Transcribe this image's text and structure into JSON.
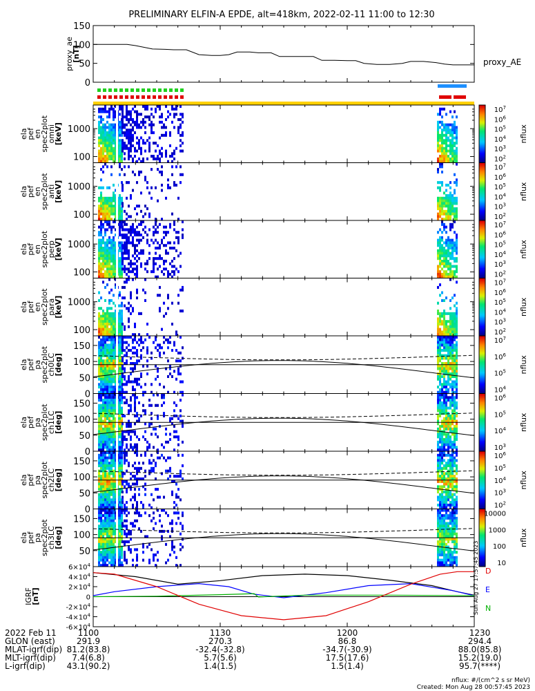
{
  "title": "PRELIMINARY ELFIN-A EPDE, alt=418km, 2022-02-11 11:00 to 12:30",
  "footer": {
    "units": "nflux: #/(cm^2 s sr MeV)",
    "created": "Created: Mon Aug 28 00:57:45 2023",
    "stamp": "Sun Aug 27 17:57:45 2023"
  },
  "orbit_table": {
    "rows": [
      {
        "label": "2022 Feb 11",
        "values": [
          "1100",
          "1130",
          "1200",
          "1230"
        ]
      },
      {
        "label": "GLON (east)",
        "values": [
          "291.9",
          "270.3",
          "86.8",
          "294.4"
        ]
      },
      {
        "label": "MLAT-igrf(dip)",
        "values": [
          "81.2(83.8)",
          "-32.4(-32.8)",
          "-34.7(-30.9)",
          "88.0(85.8)"
        ]
      },
      {
        "label": "MLT-igrf(dip)",
        "values": [
          "7.4(6.8)",
          "5.7(5.6)",
          "17.5(17.6)",
          "15.2(19.0)"
        ]
      },
      {
        "label": "L-igrf(dip)",
        "values": [
          "43.1(90.2)",
          "1.4(1.5)",
          "1.5(1.4)",
          "95.7(****)"
        ]
      }
    ]
  },
  "chart_data": [
    {
      "type": "line",
      "panel": "proxy_ae",
      "ylabel": [
        "proxy_ae",
        "[nT]"
      ],
      "legend": "proxy_AE",
      "ylim": [
        0,
        150
      ],
      "yticks": [
        "0",
        "50",
        "100",
        "150"
      ],
      "x_minutes": [
        0,
        4,
        8,
        10,
        14,
        17,
        19,
        22,
        25,
        28,
        30,
        32,
        34,
        37,
        39,
        42,
        44,
        47,
        49,
        52,
        54,
        57,
        60,
        62,
        64,
        67,
        70,
        73,
        75,
        78,
        81,
        83,
        85,
        86,
        88,
        90
      ],
      "values": [
        100,
        100,
        100,
        97,
        88,
        87,
        86,
        86,
        73,
        71,
        71,
        73,
        80,
        80,
        78,
        78,
        68,
        68,
        68,
        68,
        58,
        58,
        57,
        57,
        50,
        47,
        47,
        50,
        55,
        55,
        52,
        48,
        46,
        46,
        46,
        46
      ]
    },
    {
      "type": "heatmap",
      "panel": "spectrogram",
      "ylabel": [
        "ela",
        "pef",
        "en",
        "spec2plot",
        "omni",
        "[keV]"
      ],
      "y_scale": "log",
      "ylim": [
        60,
        7000
      ],
      "yticks": [
        "100",
        "1000"
      ],
      "colorbar": {
        "label": "nflux",
        "ticks": [
          "10^2",
          "10^3",
          "10^4",
          "10^5",
          "10^6",
          "10^7"
        ]
      }
    },
    {
      "type": "heatmap",
      "panel": "spectrogram",
      "ylabel": [
        "ela",
        "pef",
        "en",
        "spec2plot",
        "anti",
        "[keV]"
      ],
      "y_scale": "log",
      "ylim": [
        60,
        7000
      ],
      "yticks": [
        "100",
        "1000"
      ],
      "colorbar": {
        "label": "nflux",
        "ticks": [
          "10^2",
          "10^3",
          "10^4",
          "10^5",
          "10^6",
          "10^7"
        ]
      }
    },
    {
      "type": "heatmap",
      "panel": "spectrogram",
      "ylabel": [
        "ela",
        "pef",
        "en",
        "spec2plot",
        "perp",
        "[keV]"
      ],
      "y_scale": "log",
      "ylim": [
        60,
        7000
      ],
      "yticks": [
        "100",
        "1000"
      ],
      "colorbar": {
        "label": "nflux",
        "ticks": [
          "10^2",
          "10^3",
          "10^4",
          "10^5",
          "10^6",
          "10^7"
        ]
      }
    },
    {
      "type": "heatmap",
      "panel": "spectrogram",
      "ylabel": [
        "ela",
        "pef",
        "en",
        "spec2plot",
        "para",
        "[keV]"
      ],
      "y_scale": "log",
      "ylim": [
        60,
        7000
      ],
      "yticks": [
        "100",
        "1000"
      ],
      "colorbar": {
        "label": "nflux",
        "ticks": [
          "10^2",
          "10^3",
          "10^4",
          "10^5",
          "10^6",
          "10^7"
        ]
      }
    },
    {
      "type": "heatmap",
      "panel": "pitch_angle",
      "ylabel": [
        "ela",
        "pef",
        "pa",
        "spec2plot",
        "ch0LC",
        "[deg]"
      ],
      "ylim": [
        0,
        180
      ],
      "yticks": [
        "0",
        "50",
        "100",
        "150"
      ],
      "colorbar": {
        "label": "nflux",
        "ticks": [
          "10^4",
          "10^5",
          "10^6",
          "10^7"
        ]
      }
    },
    {
      "type": "heatmap",
      "panel": "pitch_angle",
      "ylabel": [
        "ela",
        "pef",
        "pa",
        "spec2plot",
        "ch1LC",
        "[deg]"
      ],
      "ylim": [
        0,
        180
      ],
      "yticks": [
        "0",
        "50",
        "100",
        "150"
      ],
      "colorbar": {
        "label": "nflux",
        "ticks": [
          "10^3",
          "10^4",
          "10^5",
          "10^6"
        ]
      }
    },
    {
      "type": "heatmap",
      "panel": "pitch_angle",
      "ylabel": [
        "ela",
        "pef",
        "pa",
        "spec2plot",
        "ch2LC",
        "[deg]"
      ],
      "ylim": [
        0,
        180
      ],
      "yticks": [
        "0",
        "50",
        "100",
        "150"
      ],
      "colorbar": {
        "label": "nflux",
        "ticks": [
          "10^2",
          "10^3",
          "10^4",
          "10^5",
          "10^6"
        ]
      }
    },
    {
      "type": "heatmap",
      "panel": "pitch_angle",
      "ylabel": [
        "ela",
        "pef",
        "pa",
        "spec2plot",
        "ch3LC",
        "[deg]"
      ],
      "ylim": [
        0,
        180
      ],
      "yticks": [
        "50",
        "100",
        "150"
      ],
      "colorbar": {
        "label": "nflux",
        "ticks": [
          "10",
          "100",
          "1000",
          "10000"
        ]
      }
    },
    {
      "type": "line",
      "panel": "igrf",
      "ylabel": [
        "IGRF",
        "[nT]"
      ],
      "ylim": [
        -60000,
        60000
      ],
      "yticks": [
        "-6×10^4",
        "-4×10^4",
        "-2×10^4",
        "0",
        "2×10^4",
        "4×10^4",
        "6×10^4"
      ],
      "legend": [
        "D",
        "E",
        "N"
      ],
      "series": [
        {
          "color": "#000000",
          "x": [
            0,
            10,
            20,
            30,
            40,
            50,
            60,
            70,
            80,
            86,
            90
          ],
          "values": [
            48000,
            40000,
            25000,
            32000,
            42000,
            45000,
            42000,
            33000,
            22000,
            10000,
            3000
          ]
        },
        {
          "color": "#0000ff",
          "x": [
            0,
            5,
            15,
            25,
            32,
            38,
            45,
            55,
            65,
            75,
            85,
            90
          ],
          "values": [
            2000,
            10000,
            20000,
            26000,
            20000,
            5000,
            -2000,
            8000,
            22000,
            26000,
            12000,
            2000
          ]
        },
        {
          "color": "#00b000",
          "x": [
            0,
            15,
            30,
            38,
            39,
            50,
            70,
            90
          ],
          "values": [
            0,
            1000,
            4000,
            6000,
            -500,
            3000,
            3000,
            2000
          ]
        },
        {
          "color": "#e00000",
          "x": [
            0,
            5,
            15,
            25,
            35,
            45,
            55,
            65,
            75,
            82,
            86,
            90
          ],
          "values": [
            48000,
            45000,
            20000,
            -15000,
            -38000,
            -46000,
            -38000,
            -10000,
            25000,
            45000,
            50000,
            50000
          ]
        }
      ]
    }
  ]
}
